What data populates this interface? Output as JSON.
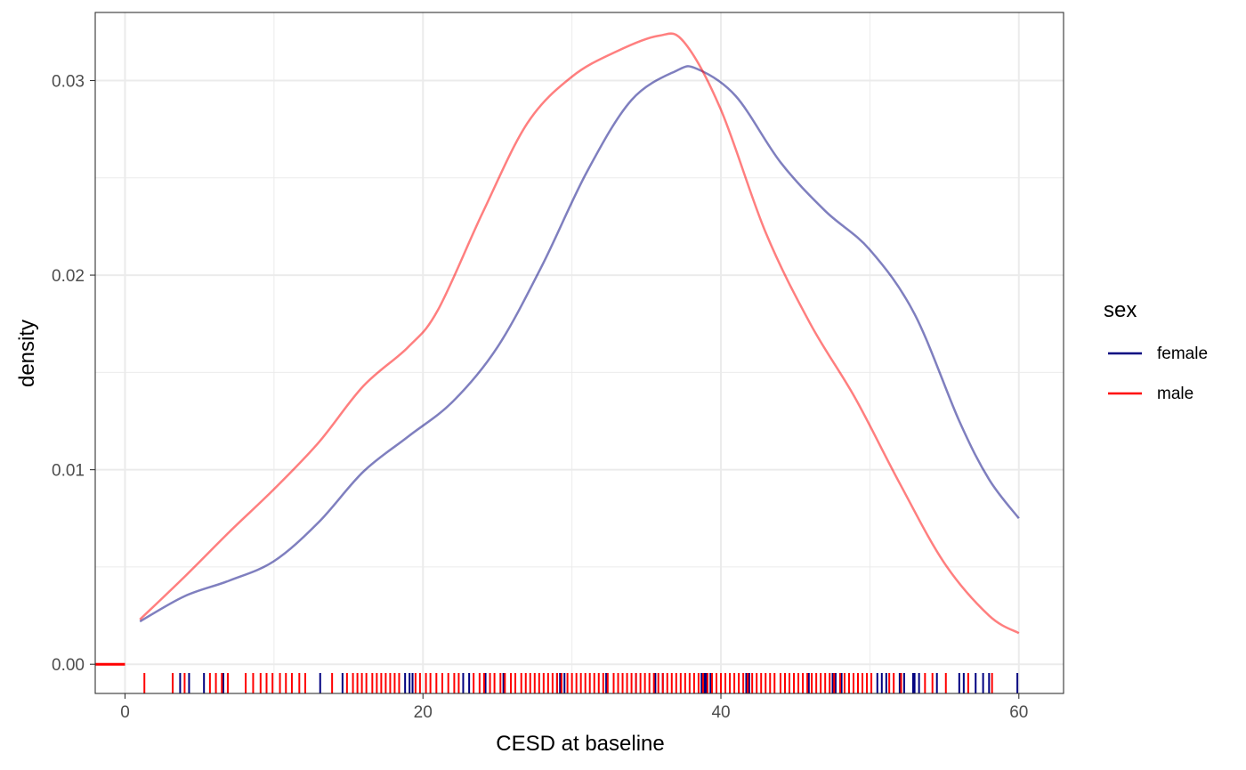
{
  "chart_data": {
    "type": "line",
    "subtype": "density",
    "xlabel": "CESD at baseline",
    "ylabel": "density",
    "xlim": [
      -2,
      63
    ],
    "ylim": [
      -0.0015,
      0.0335
    ],
    "x_ticks": [
      0,
      20,
      40,
      60
    ],
    "x_tick_labels": [
      "0",
      "20",
      "40",
      "60"
    ],
    "y_ticks": [
      0.0,
      0.01,
      0.02,
      0.03
    ],
    "y_tick_labels": [
      "0.00",
      "0.01",
      "0.02",
      "0.03"
    ],
    "grid": true,
    "legend": {
      "title": "sex",
      "position": "right",
      "entries": [
        {
          "label": "female",
          "color": "#000080"
        },
        {
          "label": "male",
          "color": "#ff0000"
        }
      ]
    },
    "series": [
      {
        "name": "female",
        "color": "#000080",
        "opacity": 0.5,
        "x": [
          1,
          4,
          7,
          10,
          13,
          16,
          19,
          22,
          25,
          28,
          31,
          34,
          37,
          38.4,
          41,
          44,
          47,
          50,
          53,
          56,
          58,
          60
        ],
        "y": [
          0.0022,
          0.0035,
          0.0043,
          0.0053,
          0.0073,
          0.0099,
          0.0117,
          0.0135,
          0.0163,
          0.0205,
          0.0253,
          0.029,
          0.0305,
          0.0306,
          0.0292,
          0.0258,
          0.0233,
          0.0213,
          0.018,
          0.0125,
          0.0095,
          0.0075
        ]
      },
      {
        "name": "male",
        "color": "#ff0000",
        "opacity": 0.5,
        "x": [
          1,
          4,
          7,
          10,
          13,
          16,
          19,
          21,
          24,
          27,
          30,
          33,
          35.8,
          37.5,
          40,
          43,
          46,
          49,
          52,
          55,
          58,
          60
        ],
        "y": [
          0.0023,
          0.0045,
          0.0068,
          0.009,
          0.0114,
          0.0143,
          0.0163,
          0.0182,
          0.0232,
          0.0278,
          0.0302,
          0.0315,
          0.0323,
          0.032,
          0.0285,
          0.0222,
          0.0175,
          0.0137,
          0.0093,
          0.0052,
          0.0025,
          0.0016
        ]
      }
    ],
    "rug": {
      "female": [
        3.2,
        3.7,
        4.3,
        5.3,
        6.6,
        6.9,
        13.1,
        14.6,
        18.8,
        19.1,
        19.3,
        22.7,
        23.1,
        24.2,
        25.4,
        29.0,
        29.2,
        29.5,
        32.3,
        34.3,
        35.6,
        36.1,
        38.7,
        38.9,
        39.0,
        39.3,
        39.7,
        41.7,
        41.9,
        45.9,
        47.5,
        47.7,
        48.1,
        50.5,
        50.8,
        51.1,
        52.0,
        52.3,
        52.9,
        53.0,
        53.3,
        54.5,
        56.0,
        56.3,
        57.1,
        57.6,
        58.0,
        59.9
      ],
      "male": [
        1.3,
        3.2,
        4.0,
        5.7,
        6.1,
        6.5,
        6.9,
        8.1,
        8.6,
        9.1,
        9.5,
        9.9,
        10.4,
        10.8,
        11.2,
        11.7,
        12.1,
        13.9,
        14.9,
        15.3,
        15.6,
        15.9,
        16.2,
        16.6,
        16.9,
        17.2,
        17.5,
        17.8,
        18.1,
        18.4,
        19.5,
        19.8,
        20.2,
        20.5,
        20.9,
        21.3,
        21.7,
        22.1,
        22.4,
        23.4,
        23.8,
        24.1,
        24.5,
        24.8,
        25.2,
        25.5,
        25.9,
        26.2,
        26.6,
        26.9,
        27.2,
        27.5,
        27.8,
        28.1,
        28.4,
        28.7,
        29.0,
        29.3,
        29.7,
        30.0,
        30.3,
        30.6,
        30.9,
        31.2,
        31.5,
        31.8,
        32.1,
        32.4,
        32.8,
        33.1,
        33.4,
        33.7,
        34.0,
        34.3,
        34.6,
        34.9,
        35.2,
        35.5,
        35.8,
        36.1,
        36.4,
        36.7,
        37.0,
        37.3,
        37.6,
        37.9,
        38.2,
        38.5,
        38.8,
        39.1,
        39.4,
        39.7,
        40.0,
        40.3,
        40.6,
        40.9,
        41.2,
        41.5,
        41.8,
        42.1,
        42.4,
        42.7,
        43.0,
        43.3,
        43.6,
        44.0,
        44.3,
        44.6,
        44.9,
        45.2,
        45.5,
        45.8,
        46.1,
        46.4,
        46.7,
        47.0,
        47.3,
        47.6,
        48.0,
        48.3,
        48.6,
        48.9,
        49.2,
        49.5,
        49.8,
        50.1,
        51.3,
        51.6,
        52.1,
        53.7,
        54.2,
        55.1,
        56.6,
        58.2
      ]
    },
    "zero_marker": {
      "x_from": -2,
      "x_to": 0,
      "y": 0,
      "color": "#ff0000"
    }
  }
}
